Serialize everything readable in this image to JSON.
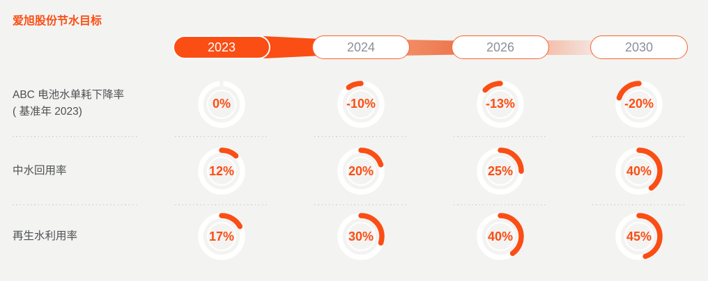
{
  "title": "爱旭股份节水目标",
  "colors": {
    "orange": "#FA4E14",
    "background": "#F3F3F2",
    "track": "#FFFFFF",
    "pill_inactive_text": "#8A909A",
    "label_text": "#4E5052",
    "dots": "#C9C9C7"
  },
  "timeline": {
    "years": [
      {
        "label": "2023",
        "active": true
      },
      {
        "label": "2024",
        "active": false
      },
      {
        "label": "2026",
        "active": false
      },
      {
        "label": "2030",
        "active": false
      }
    ]
  },
  "rows": [
    {
      "label": "ABC 电池水单耗下降率",
      "label2": "( 基准年 2023)",
      "cells": [
        {
          "text": "0%",
          "pct": 0
        },
        {
          "text": "-10%",
          "pct": -10
        },
        {
          "text": "-13%",
          "pct": -13
        },
        {
          "text": "-20%",
          "pct": -20
        }
      ]
    },
    {
      "label": "中水回用率",
      "label2": "",
      "cells": [
        {
          "text": "12%",
          "pct": 12
        },
        {
          "text": "20%",
          "pct": 20
        },
        {
          "text": "25%",
          "pct": 25
        },
        {
          "text": "40%",
          "pct": 40
        }
      ]
    },
    {
      "label": "再生水利用率",
      "label2": "",
      "cells": [
        {
          "text": "17%",
          "pct": 17
        },
        {
          "text": "30%",
          "pct": 30
        },
        {
          "text": "40%",
          "pct": 40
        },
        {
          "text": "45%",
          "pct": 45
        }
      ]
    }
  ],
  "chart_data": {
    "type": "table",
    "variant": "donut_gauge_grid",
    "title": "爱旭股份节水目标",
    "categories": [
      "2023",
      "2024",
      "2026",
      "2030"
    ],
    "series": [
      {
        "name": "ABC 电池水单耗下降率（基准年 2023）",
        "values": [
          0,
          -10,
          -13,
          -20
        ]
      },
      {
        "name": "中水回用率",
        "values": [
          12,
          20,
          25,
          40
        ]
      },
      {
        "name": "再生水利用率",
        "values": [
          17,
          30,
          40,
          45
        ]
      }
    ],
    "unit": "%",
    "layout": {
      "gauge_direction": "positive values sweep clockwise from 12 o'clock, negative counterclockwise",
      "active_year": "2023",
      "grid": false,
      "legend": false
    }
  }
}
